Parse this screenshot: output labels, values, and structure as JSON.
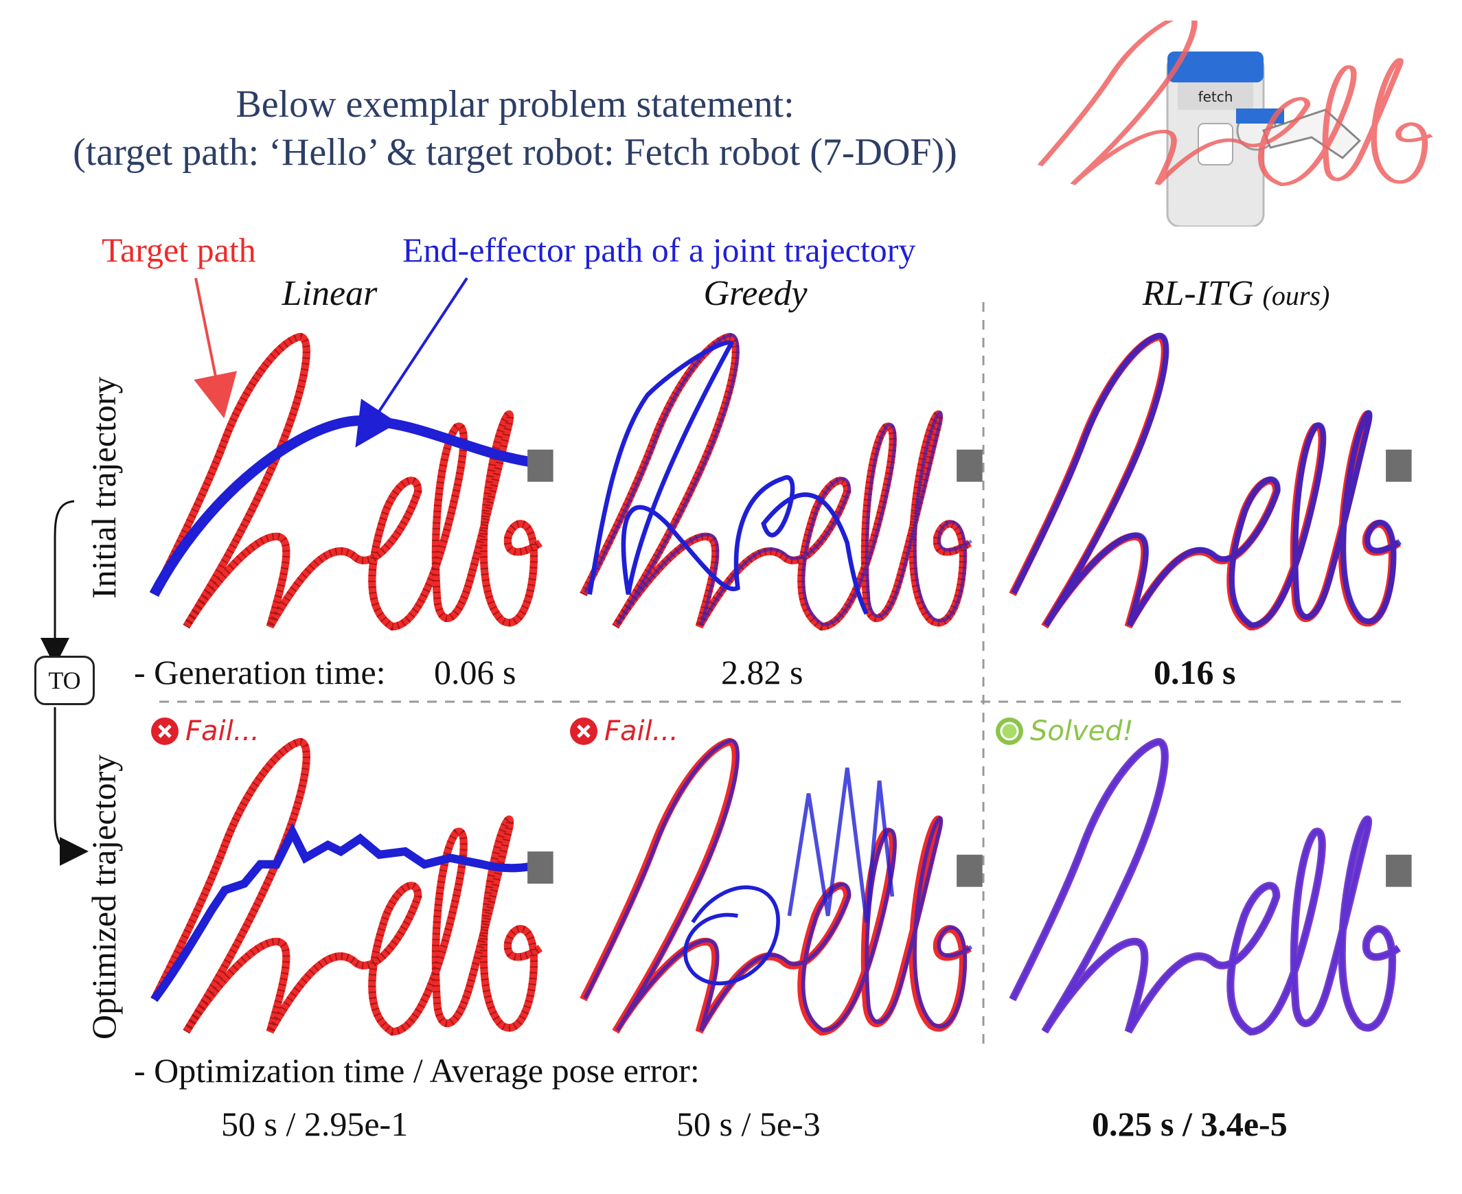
{
  "header": {
    "line1": "Below exemplar problem statement:",
    "line2": "(target path: ‘Hello’ & target robot: Fetch robot (7-DOF))",
    "thumbnail_text": "hello",
    "robot_label": "fetch"
  },
  "legend": {
    "target": "Target path",
    "end_effector": "End-effector path of a joint trajectory"
  },
  "columns": [
    {
      "name": "Linear"
    },
    {
      "name": "Greedy"
    },
    {
      "name": "RL-ITG",
      "suffix": "(ours)"
    }
  ],
  "rows": {
    "initial": "Initial trajectory",
    "optimized": "Optimized trajectory",
    "transition": "TO"
  },
  "generation": {
    "label": "- Generation time:",
    "values": [
      "0.06 s",
      "2.82 s",
      "0.16 s"
    ]
  },
  "status": [
    "Fail...",
    "Fail...",
    "Solved!"
  ],
  "optimization": {
    "label": "- Optimization time / Average pose error:",
    "values": [
      "50 s / 2.95e-1",
      "50 s / 5e-3",
      "0.25 s / 3.4e-5"
    ]
  },
  "colors": {
    "target": "#ee2a2a",
    "end_effector": "#1f1fd6",
    "title": "#2c3e66",
    "fail": "#e0202a",
    "solved": "#8cc44a"
  }
}
